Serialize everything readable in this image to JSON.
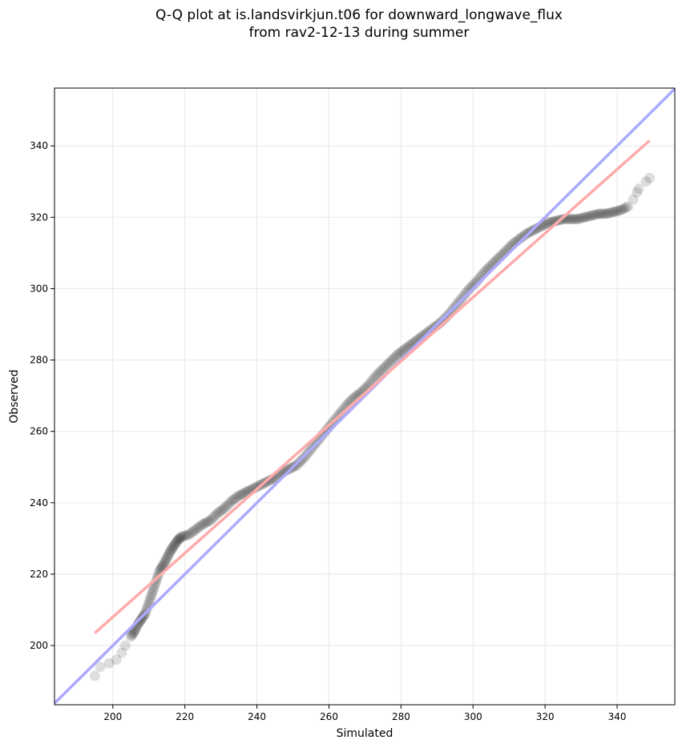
{
  "chart_data": {
    "type": "scatter",
    "title_line1": "Q-Q plot at is.landsvirkjun.t06 for downward_longwave_flux",
    "title_line2": "from rav2-12-13 during summer",
    "xlabel": "Simulated",
    "ylabel": "Observed",
    "xlim": [
      183.8,
      356
    ],
    "ylim": [
      183.4,
      356.2
    ],
    "xticks": [
      200,
      220,
      240,
      260,
      280,
      300,
      320,
      340
    ],
    "yticks": [
      200,
      220,
      240,
      260,
      280,
      300,
      320,
      340
    ],
    "grid": true,
    "colors": {
      "points": "#000000",
      "identity_line": "#aaaaff",
      "fit_line": "#ffaaaa"
    },
    "fit_line": {
      "x": [
        195,
        349
      ],
      "y": [
        203.5,
        341.5
      ]
    },
    "points": [
      [
        195,
        191.5
      ],
      [
        196.5,
        194
      ],
      [
        199,
        195
      ],
      [
        201,
        196
      ],
      [
        202.5,
        198
      ],
      [
        203.5,
        200
      ],
      [
        205,
        202.5
      ],
      [
        206,
        204
      ],
      [
        207,
        206
      ],
      [
        208,
        207.5
      ],
      [
        209,
        209
      ],
      [
        210,
        212
      ],
      [
        211,
        215
      ],
      [
        212,
        218
      ],
      [
        213,
        221
      ],
      [
        214,
        222.5
      ],
      [
        215,
        224.5
      ],
      [
        216,
        226.5
      ],
      [
        217,
        228
      ],
      [
        218,
        229.5
      ],
      [
        219,
        230.5
      ],
      [
        221,
        231
      ],
      [
        223,
        232.5
      ],
      [
        225,
        234
      ],
      [
        227,
        235
      ],
      [
        229,
        237
      ],
      [
        231,
        238.5
      ],
      [
        233,
        240.5
      ],
      [
        235,
        242
      ],
      [
        237,
        243
      ],
      [
        239,
        244
      ],
      [
        241,
        245
      ],
      [
        243,
        246
      ],
      [
        245,
        247
      ],
      [
        247,
        248.5
      ],
      [
        249,
        249.5
      ],
      [
        251,
        250.5
      ],
      [
        253,
        252.5
      ],
      [
        255,
        255
      ],
      [
        257,
        257.5
      ],
      [
        259,
        260
      ],
      [
        261,
        262.5
      ],
      [
        263,
        265
      ],
      [
        265,
        267.5
      ],
      [
        267,
        269.5
      ],
      [
        269,
        271
      ],
      [
        271,
        273
      ],
      [
        273,
        275.5
      ],
      [
        275,
        277.5
      ],
      [
        277,
        279.5
      ],
      [
        279,
        281.5
      ],
      [
        281,
        283
      ],
      [
        283,
        284.5
      ],
      [
        285,
        286
      ],
      [
        287,
        287.5
      ],
      [
        289,
        289
      ],
      [
        291,
        290.5
      ],
      [
        293,
        292.5
      ],
      [
        295,
        295
      ],
      [
        297,
        297.5
      ],
      [
        299,
        300
      ],
      [
        301,
        302
      ],
      [
        303,
        304.5
      ],
      [
        305,
        306.5
      ],
      [
        307,
        308.5
      ],
      [
        309,
        310.5
      ],
      [
        311,
        312.5
      ],
      [
        313,
        314
      ],
      [
        315,
        315.5
      ],
      [
        317,
        316.5
      ],
      [
        319,
        317.5
      ],
      [
        321,
        318.5
      ],
      [
        323,
        319
      ],
      [
        325,
        319.5
      ],
      [
        327,
        319.5
      ],
      [
        329,
        319.5
      ],
      [
        331,
        320
      ],
      [
        333,
        320.5
      ],
      [
        335,
        321
      ],
      [
        337,
        321
      ],
      [
        339,
        321.5
      ],
      [
        341,
        322
      ],
      [
        343,
        323
      ],
      [
        344.5,
        325
      ],
      [
        345.5,
        327
      ],
      [
        346,
        328
      ],
      [
        348,
        330
      ],
      [
        349,
        331
      ]
    ]
  }
}
